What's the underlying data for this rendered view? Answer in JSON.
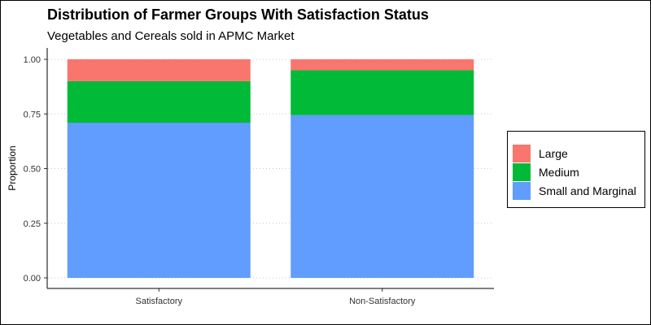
{
  "chart_data": {
    "type": "bar",
    "stacked": true,
    "title": "Distribution of Farmer Groups With Satisfaction Status",
    "subtitle": "Vegetables and Cereals sold in APMC Market",
    "xlabel": "",
    "ylabel": "Proportion",
    "ylim": [
      0,
      1
    ],
    "yticks": [
      "0.00",
      "0.25",
      "0.50",
      "0.75",
      "1.00"
    ],
    "ytick_values": [
      0,
      0.25,
      0.5,
      0.75,
      1.0
    ],
    "categories": [
      "Satisfactory",
      "Non-Satisfactory"
    ],
    "series": [
      {
        "name": "Small and Marginal",
        "color": "#619CFF",
        "values": [
          0.71,
          0.745
        ]
      },
      {
        "name": "Medium",
        "color": "#00BA38",
        "values": [
          0.19,
          0.205
        ]
      },
      {
        "name": "Large",
        "color": "#F8766D",
        "values": [
          0.1,
          0.05
        ]
      }
    ],
    "grid": "horizontal dotted",
    "legend_position": "right",
    "legend_order": [
      "Large",
      "Medium",
      "Small and Marginal"
    ]
  }
}
